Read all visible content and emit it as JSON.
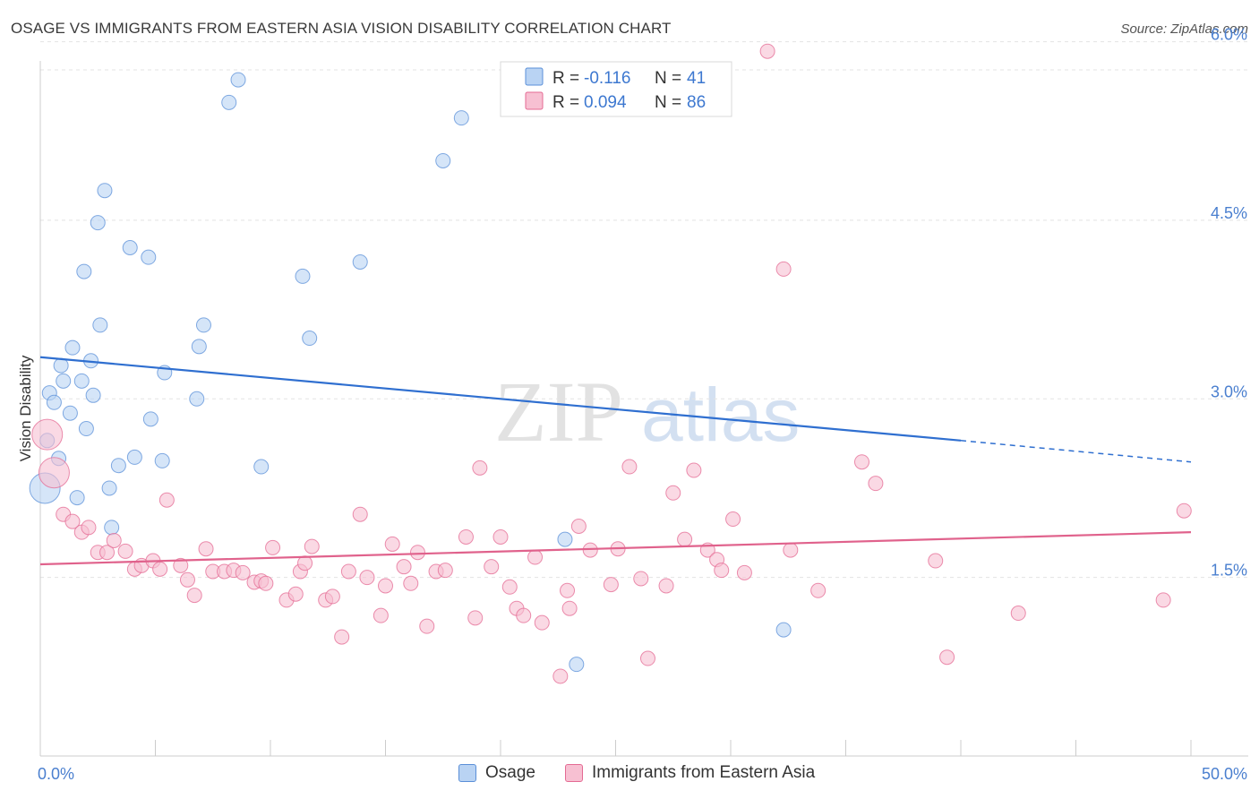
{
  "title": "OSAGE VS IMMIGRANTS FROM EASTERN ASIA VISION DISABILITY CORRELATION CHART",
  "source": "Source: ZipAtlas.com",
  "watermark": {
    "zip": "ZIP",
    "atlas": "atlas"
  },
  "chart_data": {
    "type": "scatter",
    "xlabel": "",
    "ylabel": "Vision Disability",
    "xlim": [
      0,
      50
    ],
    "ylim": [
      0,
      6.2
    ],
    "x_tick_labels": {
      "min": "0.0%",
      "max": "50.0%"
    },
    "y_ticks": [
      {
        "value": 1.5,
        "label": "1.5%"
      },
      {
        "value": 3.0,
        "label": "3.0%"
      },
      {
        "value": 4.5,
        "label": "4.5%"
      },
      {
        "value": 6.0,
        "label": "6.0%"
      }
    ],
    "legend": {
      "rows": [
        {
          "r_label": "R = ",
          "r_value": "-0.116",
          "n_label": "N = ",
          "n_value": "41"
        },
        {
          "r_label": "R = ",
          "r_value": "0.094",
          "n_label": "N = ",
          "n_value": "86"
        }
      ]
    },
    "series": [
      {
        "name": "Osage",
        "color": "#5a8fd8",
        "fill": "#b9d3f3",
        "trend": {
          "x_start": 0,
          "y_start": 3.35,
          "x_solid_end": 40,
          "y_solid_end": 2.65,
          "x_end": 50,
          "y_end": 2.47
        },
        "points": [
          {
            "x": 0.2,
            "y": 2.25,
            "big": true
          },
          {
            "x": 0.3,
            "y": 2.65
          },
          {
            "x": 0.4,
            "y": 3.05
          },
          {
            "x": 0.6,
            "y": 2.97
          },
          {
            "x": 0.8,
            "y": 2.5
          },
          {
            "x": 0.9,
            "y": 3.28
          },
          {
            "x": 1.0,
            "y": 3.15
          },
          {
            "x": 1.3,
            "y": 2.88
          },
          {
            "x": 1.4,
            "y": 3.43
          },
          {
            "x": 1.6,
            "y": 2.17
          },
          {
            "x": 1.8,
            "y": 3.15
          },
          {
            "x": 1.9,
            "y": 4.07
          },
          {
            "x": 2.0,
            "y": 2.75
          },
          {
            "x": 2.2,
            "y": 3.32
          },
          {
            "x": 2.3,
            "y": 3.03
          },
          {
            "x": 2.5,
            "y": 4.48
          },
          {
            "x": 2.6,
            "y": 3.62
          },
          {
            "x": 2.8,
            "y": 4.75
          },
          {
            "x": 3.0,
            "y": 2.25
          },
          {
            "x": 3.1,
            "y": 1.92
          },
          {
            "x": 3.4,
            "y": 2.44
          },
          {
            "x": 3.9,
            "y": 4.27
          },
          {
            "x": 4.1,
            "y": 2.51
          },
          {
            "x": 4.7,
            "y": 4.19
          },
          {
            "x": 4.8,
            "y": 2.83
          },
          {
            "x": 5.3,
            "y": 2.48
          },
          {
            "x": 5.4,
            "y": 3.22
          },
          {
            "x": 6.8,
            "y": 3.0
          },
          {
            "x": 6.9,
            "y": 3.44
          },
          {
            "x": 7.1,
            "y": 3.62
          },
          {
            "x": 8.2,
            "y": 5.49
          },
          {
            "x": 8.6,
            "y": 5.68
          },
          {
            "x": 9.6,
            "y": 2.43
          },
          {
            "x": 11.4,
            "y": 4.03
          },
          {
            "x": 11.7,
            "y": 3.51
          },
          {
            "x": 13.9,
            "y": 4.15
          },
          {
            "x": 17.5,
            "y": 5.0
          },
          {
            "x": 18.3,
            "y": 5.36
          },
          {
            "x": 22.8,
            "y": 1.82
          },
          {
            "x": 23.3,
            "y": 0.77
          },
          {
            "x": 32.3,
            "y": 1.06
          }
        ]
      },
      {
        "name": "Immigrants from Eastern Asia",
        "color": "#e46a93",
        "fill": "#f7c0d2",
        "trend": {
          "x_start": 0,
          "y_start": 1.61,
          "x_end": 50,
          "y_end": 1.88
        },
        "points": [
          {
            "x": 0.3,
            "y": 2.7,
            "big": true
          },
          {
            "x": 0.6,
            "y": 2.38,
            "big": true
          },
          {
            "x": 1.0,
            "y": 2.03
          },
          {
            "x": 1.4,
            "y": 1.97
          },
          {
            "x": 1.8,
            "y": 1.88
          },
          {
            "x": 2.1,
            "y": 1.92
          },
          {
            "x": 2.5,
            "y": 1.71
          },
          {
            "x": 2.9,
            "y": 1.71
          },
          {
            "x": 3.2,
            "y": 1.81
          },
          {
            "x": 3.7,
            "y": 1.72
          },
          {
            "x": 4.1,
            "y": 1.57
          },
          {
            "x": 4.4,
            "y": 1.6
          },
          {
            "x": 4.9,
            "y": 1.64
          },
          {
            "x": 5.2,
            "y": 1.57
          },
          {
            "x": 5.5,
            "y": 2.15
          },
          {
            "x": 6.1,
            "y": 1.6
          },
          {
            "x": 6.4,
            "y": 1.48
          },
          {
            "x": 6.7,
            "y": 1.35
          },
          {
            "x": 7.2,
            "y": 1.74
          },
          {
            "x": 7.5,
            "y": 1.55
          },
          {
            "x": 8.0,
            "y": 1.55
          },
          {
            "x": 8.4,
            "y": 1.56
          },
          {
            "x": 8.8,
            "y": 1.54
          },
          {
            "x": 9.3,
            "y": 1.46
          },
          {
            "x": 9.6,
            "y": 1.47
          },
          {
            "x": 9.8,
            "y": 1.45
          },
          {
            "x": 10.1,
            "y": 1.75
          },
          {
            "x": 10.7,
            "y": 1.31
          },
          {
            "x": 11.1,
            "y": 1.36
          },
          {
            "x": 11.3,
            "y": 1.55
          },
          {
            "x": 11.5,
            "y": 1.62
          },
          {
            "x": 11.8,
            "y": 1.76
          },
          {
            "x": 12.4,
            "y": 1.31
          },
          {
            "x": 12.7,
            "y": 1.34
          },
          {
            "x": 13.1,
            "y": 1.0
          },
          {
            "x": 13.4,
            "y": 1.55
          },
          {
            "x": 13.9,
            "y": 2.03
          },
          {
            "x": 14.2,
            "y": 1.5
          },
          {
            "x": 14.8,
            "y": 1.18
          },
          {
            "x": 15.0,
            "y": 1.43
          },
          {
            "x": 15.3,
            "y": 1.78
          },
          {
            "x": 15.8,
            "y": 1.59
          },
          {
            "x": 16.1,
            "y": 1.45
          },
          {
            "x": 16.4,
            "y": 1.71
          },
          {
            "x": 16.8,
            "y": 1.09
          },
          {
            "x": 17.2,
            "y": 1.55
          },
          {
            "x": 17.6,
            "y": 1.56
          },
          {
            "x": 18.5,
            "y": 1.84
          },
          {
            "x": 18.9,
            "y": 1.16
          },
          {
            "x": 19.1,
            "y": 2.42
          },
          {
            "x": 19.6,
            "y": 1.59
          },
          {
            "x": 20.0,
            "y": 1.84
          },
          {
            "x": 20.4,
            "y": 1.42
          },
          {
            "x": 20.7,
            "y": 1.24
          },
          {
            "x": 21.0,
            "y": 1.18
          },
          {
            "x": 21.5,
            "y": 1.67
          },
          {
            "x": 21.8,
            "y": 1.12
          },
          {
            "x": 22.6,
            "y": 0.67
          },
          {
            "x": 22.9,
            "y": 1.39
          },
          {
            "x": 23.0,
            "y": 1.24
          },
          {
            "x": 23.4,
            "y": 1.93
          },
          {
            "x": 23.9,
            "y": 1.73
          },
          {
            "x": 24.8,
            "y": 1.44
          },
          {
            "x": 25.1,
            "y": 1.74
          },
          {
            "x": 25.6,
            "y": 2.43
          },
          {
            "x": 26.1,
            "y": 1.49
          },
          {
            "x": 26.4,
            "y": 0.82
          },
          {
            "x": 27.2,
            "y": 1.43
          },
          {
            "x": 27.5,
            "y": 2.21
          },
          {
            "x": 28.0,
            "y": 1.82
          },
          {
            "x": 28.4,
            "y": 2.4
          },
          {
            "x": 29.0,
            "y": 1.73
          },
          {
            "x": 29.4,
            "y": 1.65
          },
          {
            "x": 29.6,
            "y": 1.56
          },
          {
            "x": 30.1,
            "y": 1.99
          },
          {
            "x": 30.6,
            "y": 1.54
          },
          {
            "x": 31.6,
            "y": 5.92
          },
          {
            "x": 32.3,
            "y": 4.09
          },
          {
            "x": 32.6,
            "y": 1.73
          },
          {
            "x": 33.8,
            "y": 1.39
          },
          {
            "x": 35.7,
            "y": 2.47
          },
          {
            "x": 36.3,
            "y": 2.29
          },
          {
            "x": 38.9,
            "y": 1.64
          },
          {
            "x": 39.4,
            "y": 0.83
          },
          {
            "x": 42.5,
            "y": 1.2
          },
          {
            "x": 48.8,
            "y": 1.31
          },
          {
            "x": 49.7,
            "y": 2.06
          }
        ]
      }
    ]
  }
}
